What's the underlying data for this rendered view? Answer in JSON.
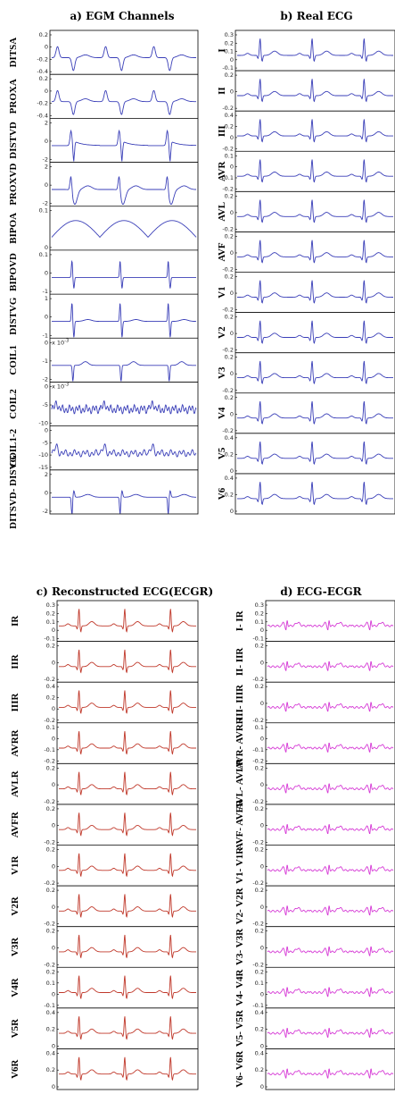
{
  "colors": {
    "egm": "#3a3fb8",
    "ecg": "#3a3fb8",
    "ecgr": "#c0392b",
    "diff": "#d63bd6"
  },
  "panels": [
    {
      "id": "a",
      "title": "a) EGM Channels",
      "color_key": "egm",
      "rows": [
        {
          "label": "DITSA",
          "ticks": [
            "0.2",
            "0",
            "-0.2",
            "-0.4"
          ],
          "wave": "egm1"
        },
        {
          "label": "PROXA",
          "ticks": [
            "0.2",
            "0",
            "-0.2",
            "-0.4"
          ],
          "wave": "egm1"
        },
        {
          "label": "DISTVD",
          "ticks": [
            "2",
            "0",
            "-2"
          ],
          "wave": "egm2"
        },
        {
          "label": "PROXVD",
          "ticks": [
            "2",
            "0",
            "-2"
          ],
          "wave": "egm3"
        },
        {
          "label": "BIPOA",
          "ticks": [
            "0.1",
            "0"
          ],
          "wave": "egm4"
        },
        {
          "label": "BIPOVD",
          "ticks": [
            "0.1",
            "0",
            "-1"
          ],
          "wave": "egm5"
        },
        {
          "label": "DISTVG",
          "ticks": [
            "1",
            "0",
            "-1"
          ],
          "wave": "egm6"
        },
        {
          "label": "COIL1",
          "ticks": [
            "0",
            "-1",
            "-2"
          ],
          "wave": "egm7",
          "exp": "x 10",
          "exp_sup": "-3"
        },
        {
          "label": "COIL2",
          "ticks": [
            "0",
            "-5",
            "-10"
          ],
          "wave": "egm8",
          "exp": "x 10",
          "exp_sup": "-3"
        },
        {
          "label": "COIL1-2",
          "ticks": [
            "0",
            "-5",
            "-10",
            "-15"
          ],
          "wave": "egm9"
        },
        {
          "label": "DITSVD- DISVG",
          "ticks": [
            "2",
            "0",
            "-2"
          ],
          "wave": "egm10"
        }
      ]
    },
    {
      "id": "b",
      "title": "b) Real ECG",
      "color_key": "ecg",
      "rows": [
        {
          "label": "I",
          "ticks": [
            "0.3",
            "0.2",
            "0.1",
            "0",
            "-0.1"
          ],
          "wave": "qrs"
        },
        {
          "label": "II",
          "ticks": [
            "0.2",
            "0",
            "-0.2"
          ],
          "wave": "qrs"
        },
        {
          "label": "III",
          "ticks": [
            "0.4",
            "0.2",
            "0",
            "-0.2"
          ],
          "wave": "qrs"
        },
        {
          "label": "AVR",
          "ticks": [
            "0.1",
            "0",
            "-0.1",
            "-0.2"
          ],
          "wave": "qrs"
        },
        {
          "label": "AVL",
          "ticks": [
            "0.2",
            "0",
            "-0.2"
          ],
          "wave": "qrs"
        },
        {
          "label": "AVF",
          "ticks": [
            "0.2",
            "0",
            "-0.2"
          ],
          "wave": "qrs"
        },
        {
          "label": "V1",
          "ticks": [
            "0.2",
            "0",
            "-0.2"
          ],
          "wave": "qrs"
        },
        {
          "label": "V2",
          "ticks": [
            "0.2",
            "0",
            "-0.2"
          ],
          "wave": "qrs"
        },
        {
          "label": "V3",
          "ticks": [
            "0.2",
            "0",
            "-0.2"
          ],
          "wave": "qrs"
        },
        {
          "label": "V4",
          "ticks": [
            "0.2",
            "0",
            "-0.2"
          ],
          "wave": "qrs"
        },
        {
          "label": "V5",
          "ticks": [
            "0.4",
            "0.2",
            "0"
          ],
          "wave": "qrs"
        },
        {
          "label": "V6",
          "ticks": [
            "0.4",
            "0.2",
            "0"
          ],
          "wave": "qrs"
        }
      ]
    },
    {
      "id": "c",
      "title": "c) Reconstructed ECG(ECGR)",
      "color_key": "ecgr",
      "rows": [
        {
          "label": "IR",
          "ticks": [
            "0.3",
            "0.2",
            "0.1",
            "0",
            "-0.1"
          ],
          "wave": "qrs"
        },
        {
          "label": "IIR",
          "ticks": [
            "0.2",
            "0",
            "-0.2"
          ],
          "wave": "qrs"
        },
        {
          "label": "IIIR",
          "ticks": [
            "0.4",
            "0.2",
            "0",
            "-0.2"
          ],
          "wave": "qrs"
        },
        {
          "label": "AVRR",
          "ticks": [
            "0.1",
            "0",
            "-0.1",
            "-0.2"
          ],
          "wave": "qrs"
        },
        {
          "label": "AVLR",
          "ticks": [
            "0.2",
            "0",
            "-0.2"
          ],
          "wave": "qrs"
        },
        {
          "label": "AVFR",
          "ticks": [
            "0.2",
            "0",
            "-0.2"
          ],
          "wave": "qrs"
        },
        {
          "label": "V1R",
          "ticks": [
            "0.2",
            "0",
            "-0.2"
          ],
          "wave": "qrs"
        },
        {
          "label": "V2R",
          "ticks": [
            "0.2",
            "0",
            "-0.2"
          ],
          "wave": "qrs"
        },
        {
          "label": "V3R",
          "ticks": [
            "0.2",
            "0",
            "-0.2"
          ],
          "wave": "qrs"
        },
        {
          "label": "V4R",
          "ticks": [
            "0.2",
            "0.1",
            "0",
            "-0.1"
          ],
          "wave": "qrs"
        },
        {
          "label": "V5R",
          "ticks": [
            "0.4",
            "0.2",
            "0"
          ],
          "wave": "qrs"
        },
        {
          "label": "V6R",
          "ticks": [
            "0.4",
            "0.2",
            "0"
          ],
          "wave": "qrs"
        }
      ]
    },
    {
      "id": "d",
      "title": "d) ECG-ECGR",
      "color_key": "diff",
      "rows": [
        {
          "label": "I- IR",
          "ticks": [
            "0.3",
            "0.2",
            "0.1",
            "0",
            "-0.1"
          ],
          "wave": "diff"
        },
        {
          "label": "II- IIR",
          "ticks": [
            "0.2",
            "0",
            "-0.2"
          ],
          "wave": "diff"
        },
        {
          "label": "III- IIIR",
          "ticks": [
            "0.2",
            "0",
            "-0.2"
          ],
          "wave": "diff"
        },
        {
          "label": "AVR- AVRR",
          "ticks": [
            "0.1",
            "0",
            "-0.1",
            "-0.2"
          ],
          "wave": "diff"
        },
        {
          "label": "AVL- AVLR",
          "ticks": [
            "0.2",
            "0",
            "-0.2"
          ],
          "wave": "diff"
        },
        {
          "label": "AVF- AVFR",
          "ticks": [
            "0.2",
            "0",
            "-0.2"
          ],
          "wave": "diff"
        },
        {
          "label": "V1- V1R",
          "ticks": [
            "0.2",
            "0",
            "-0.2"
          ],
          "wave": "diff"
        },
        {
          "label": "V2- V2R",
          "ticks": [
            "0.2",
            "0",
            "-0.2"
          ],
          "wave": "diff"
        },
        {
          "label": "V3- V3R",
          "ticks": [
            "0.2",
            "0",
            "-0.2"
          ],
          "wave": "diff"
        },
        {
          "label": "V4- V4R",
          "ticks": [
            "0.2",
            "0.1",
            "0",
            "-0.1"
          ],
          "wave": "diff"
        },
        {
          "label": "V5- V5R",
          "ticks": [
            "0.4",
            "0.2",
            "0"
          ],
          "wave": "diff"
        },
        {
          "label": "V6- V6R",
          "ticks": [
            "0.4",
            "0.2",
            "0"
          ],
          "wave": "diff"
        }
      ]
    }
  ],
  "chart_data": {
    "type": "line",
    "beats_per_trace": 3
  }
}
